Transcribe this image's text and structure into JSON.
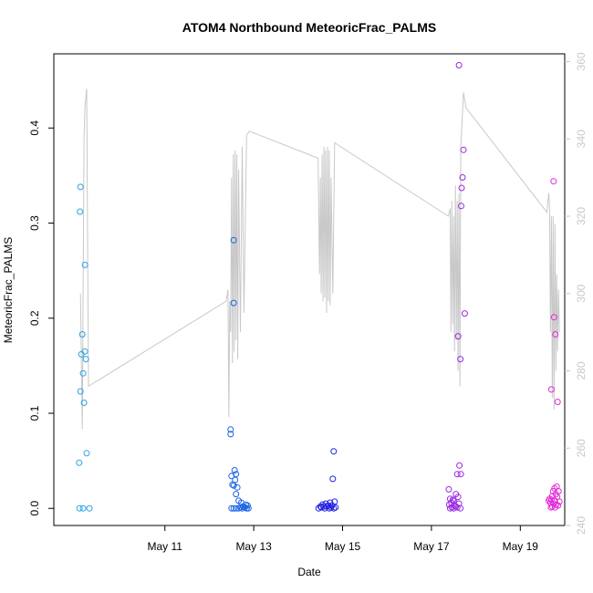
{
  "chart_data": {
    "type": "scatter",
    "title": "ATOM4 Northbound MeteoricFrac_PALMS",
    "xlabel": "Date",
    "ylabel": "MeteoricFrac_PALMS",
    "x_ticks": [
      "May 11",
      "May 13",
      "May 15",
      "May 17",
      "May 19"
    ],
    "x_tick_day": [
      11,
      13,
      15,
      17,
      19
    ],
    "xlim_day": [
      8.5,
      20.0
    ],
    "ylim": [
      -0.018,
      0.478
    ],
    "y_ticks": [
      "0.0",
      "0.1",
      "0.2",
      "0.3",
      "0.4"
    ],
    "y_tick_values": [
      0.0,
      0.1,
      0.2,
      0.3,
      0.4
    ],
    "right_axis": {
      "ylim": [
        240,
        362
      ],
      "ticks": [
        "240",
        "260",
        "280",
        "300",
        "320",
        "340",
        "360"
      ],
      "tick_values": [
        240,
        260,
        280,
        300,
        320,
        340,
        360
      ],
      "color": "#c8c8c8"
    },
    "grid": false,
    "legend": "none",
    "series": [
      {
        "color": "#29a3e0",
        "points": [
          [
            9.1,
            0.338
          ],
          [
            9.09,
            0.312
          ],
          [
            9.2,
            0.256
          ],
          [
            9.14,
            0.183
          ],
          [
            9.12,
            0.162
          ],
          [
            9.2,
            0.165
          ],
          [
            9.22,
            0.157
          ],
          [
            9.16,
            0.142
          ],
          [
            9.1,
            0.123
          ],
          [
            9.18,
            0.111
          ],
          [
            9.24,
            0.058
          ],
          [
            9.07,
            0.048
          ],
          [
            9.08,
            0.0
          ],
          [
            9.16,
            0.0
          ],
          [
            9.3,
            0.0
          ]
        ]
      },
      {
        "color": "#1a64e6",
        "points": [
          [
            12.55,
            0.282
          ],
          [
            12.55,
            0.216
          ],
          [
            12.48,
            0.083
          ],
          [
            12.48,
            0.078
          ],
          [
            12.57,
            0.04
          ],
          [
            12.6,
            0.036
          ],
          [
            12.5,
            0.034
          ],
          [
            12.58,
            0.03
          ],
          [
            12.52,
            0.025
          ],
          [
            12.55,
            0.024
          ],
          [
            12.63,
            0.022
          ],
          [
            12.6,
            0.015
          ],
          [
            12.66,
            0.008
          ],
          [
            12.72,
            0.006
          ],
          [
            12.82,
            0.004
          ],
          [
            12.86,
            0.003
          ],
          [
            12.76,
            0.002
          ],
          [
            12.8,
            0.001
          ],
          [
            12.7,
            0.001
          ],
          [
            12.5,
            0.0
          ],
          [
            12.55,
            0.0
          ],
          [
            12.6,
            0.0
          ],
          [
            12.66,
            0.0
          ],
          [
            12.74,
            0.0
          ],
          [
            12.84,
            0.0
          ],
          [
            12.88,
            0.0
          ]
        ]
      },
      {
        "color": "#2020e0",
        "points": [
          [
            14.8,
            0.06
          ],
          [
            14.78,
            0.031
          ],
          [
            14.82,
            0.007
          ],
          [
            14.72,
            0.006
          ],
          [
            14.62,
            0.005
          ],
          [
            14.55,
            0.004
          ],
          [
            14.68,
            0.003
          ],
          [
            14.76,
            0.003
          ],
          [
            14.5,
            0.002
          ],
          [
            14.58,
            0.002
          ],
          [
            14.65,
            0.002
          ],
          [
            14.74,
            0.001
          ],
          [
            14.52,
            0.001
          ],
          [
            14.6,
            0.0
          ],
          [
            14.7,
            0.0
          ],
          [
            14.8,
            0.0
          ],
          [
            14.46,
            0.0
          ],
          [
            14.84,
            0.001
          ]
        ]
      },
      {
        "color": "#9a2be0",
        "points": [
          [
            17.62,
            0.466
          ],
          [
            17.72,
            0.377
          ],
          [
            17.7,
            0.348
          ],
          [
            17.68,
            0.337
          ],
          [
            17.67,
            0.318
          ],
          [
            17.75,
            0.205
          ],
          [
            17.6,
            0.181
          ],
          [
            17.65,
            0.157
          ],
          [
            17.63,
            0.045
          ],
          [
            17.58,
            0.036
          ],
          [
            17.66,
            0.036
          ],
          [
            17.39,
            0.02
          ],
          [
            17.55,
            0.015
          ],
          [
            17.6,
            0.012
          ],
          [
            17.42,
            0.01
          ],
          [
            17.48,
            0.009
          ],
          [
            17.5,
            0.008
          ],
          [
            17.45,
            0.006
          ],
          [
            17.62,
            0.005
          ],
          [
            17.4,
            0.004
          ],
          [
            17.52,
            0.003
          ],
          [
            17.55,
            0.002
          ],
          [
            17.46,
            0.001
          ],
          [
            17.58,
            0.001
          ],
          [
            17.42,
            0.0
          ],
          [
            17.65,
            0.0
          ],
          [
            17.5,
            0.0
          ]
        ]
      },
      {
        "color": "#e02bd6",
        "points": [
          [
            19.75,
            0.344
          ],
          [
            19.76,
            0.201
          ],
          [
            19.79,
            0.183
          ],
          [
            19.7,
            0.125
          ],
          [
            19.84,
            0.112
          ],
          [
            19.82,
            0.023
          ],
          [
            19.77,
            0.021
          ],
          [
            19.74,
            0.018
          ],
          [
            19.86,
            0.018
          ],
          [
            19.8,
            0.015
          ],
          [
            19.72,
            0.013
          ],
          [
            19.83,
            0.012
          ],
          [
            19.66,
            0.01
          ],
          [
            19.7,
            0.009
          ],
          [
            19.78,
            0.008
          ],
          [
            19.88,
            0.007
          ],
          [
            19.64,
            0.008
          ],
          [
            19.68,
            0.006
          ],
          [
            19.75,
            0.005
          ],
          [
            19.81,
            0.004
          ],
          [
            19.85,
            0.003
          ],
          [
            19.72,
            0.002
          ],
          [
            19.78,
            0.001
          ],
          [
            19.69,
            0.001
          ]
        ]
      }
    ],
    "right_series": {
      "color": "#c8c8c8",
      "points": [
        [
          9.1,
          300
        ],
        [
          9.14,
          265
        ],
        [
          9.18,
          340
        ],
        [
          9.2,
          348
        ],
        [
          9.24,
          353
        ],
        [
          9.28,
          276
        ],
        [
          12.38,
          298
        ],
        [
          12.42,
          301
        ],
        [
          12.44,
          268
        ],
        [
          12.46,
          298
        ],
        [
          12.48,
          290
        ],
        [
          12.5,
          330
        ],
        [
          12.52,
          282
        ],
        [
          12.54,
          336
        ],
        [
          12.56,
          285
        ],
        [
          12.58,
          337
        ],
        [
          12.6,
          288
        ],
        [
          12.62,
          336
        ],
        [
          12.64,
          283
        ],
        [
          12.66,
          332
        ],
        [
          12.7,
          290
        ],
        [
          12.74,
          338
        ],
        [
          12.78,
          295
        ],
        [
          12.84,
          341
        ],
        [
          12.9,
          342
        ],
        [
          14.45,
          335
        ],
        [
          14.48,
          305
        ],
        [
          14.5,
          330
        ],
        [
          14.52,
          300
        ],
        [
          14.54,
          336
        ],
        [
          14.56,
          298
        ],
        [
          14.58,
          338
        ],
        [
          14.6,
          299
        ],
        [
          14.62,
          337
        ],
        [
          14.64,
          295
        ],
        [
          14.66,
          338
        ],
        [
          14.68,
          298
        ],
        [
          14.7,
          337
        ],
        [
          14.72,
          297
        ],
        [
          14.74,
          330
        ],
        [
          14.78,
          300
        ],
        [
          14.82,
          339
        ],
        [
          17.38,
          320
        ],
        [
          17.42,
          322
        ],
        [
          17.44,
          290
        ],
        [
          17.46,
          324
        ],
        [
          17.48,
          292
        ],
        [
          17.5,
          320
        ],
        [
          17.52,
          285
        ],
        [
          17.54,
          328
        ],
        [
          17.56,
          288
        ],
        [
          17.58,
          324
        ],
        [
          17.6,
          280
        ],
        [
          17.62,
          326
        ],
        [
          17.64,
          276
        ],
        [
          17.66,
          338
        ],
        [
          17.7,
          347
        ],
        [
          17.72,
          352
        ],
        [
          17.78,
          348
        ],
        [
          19.6,
          321
        ],
        [
          19.64,
          326
        ],
        [
          19.66,
          322
        ],
        [
          19.68,
          290
        ],
        [
          19.7,
          320
        ],
        [
          19.72,
          273
        ],
        [
          19.74,
          320
        ],
        [
          19.76,
          270
        ],
        [
          19.78,
          318
        ],
        [
          19.8,
          280
        ],
        [
          19.82,
          305
        ],
        [
          19.84,
          285
        ],
        [
          19.86,
          301
        ],
        [
          19.88,
          290
        ]
      ]
    }
  }
}
